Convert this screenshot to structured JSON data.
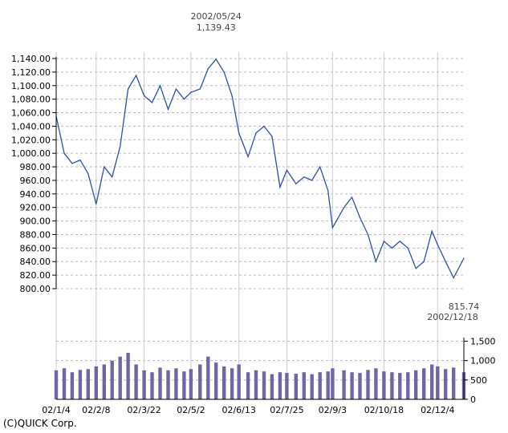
{
  "chart_data": [
    {
      "type": "line",
      "title": "",
      "xlabel": "",
      "ylabel": "",
      "ylim": [
        800,
        1140
      ],
      "y_ticks": [
        "1,140.00",
        "1,120.00",
        "1,100.00",
        "1,080.00",
        "1,060.00",
        "1,040.00",
        "1,020.00",
        "1,000.00",
        "980.00",
        "960.00",
        "940.00",
        "920.00",
        "900.00",
        "880.00",
        "860.00",
        "840.00",
        "820.00",
        "800.00"
      ],
      "grid": true,
      "line_color": "#2d4fb0",
      "high": {
        "date": "2002/05/24",
        "value_label": "1,139.43"
      },
      "low": {
        "date": "2002/12/18",
        "value_label": "815.74"
      },
      "series": [
        {
          "x": [
            "2002-01-04",
            "2002-01-11",
            "2002-01-18",
            "2002-01-25",
            "2002-02-01",
            "2002-02-08",
            "2002-02-15",
            "2002-02-22",
            "2002-03-01",
            "2002-03-08",
            "2002-03-15",
            "2002-03-22",
            "2002-03-29",
            "2002-04-05",
            "2002-04-12",
            "2002-04-19",
            "2002-04-26",
            "2002-05-02",
            "2002-05-10",
            "2002-05-17",
            "2002-05-24",
            "2002-05-31",
            "2002-06-07",
            "2002-06-13",
            "2002-06-21",
            "2002-06-28",
            "2002-07-05",
            "2002-07-12",
            "2002-07-19",
            "2002-07-25",
            "2002-08-02",
            "2002-08-09",
            "2002-08-16",
            "2002-08-23",
            "2002-08-30",
            "2002-09-03",
            "2002-09-13",
            "2002-09-20",
            "2002-09-27",
            "2002-10-04",
            "2002-10-11",
            "2002-10-18",
            "2002-10-25",
            "2002-11-01",
            "2002-11-08",
            "2002-11-15",
            "2002-11-22",
            "2002-11-29",
            "2002-12-04",
            "2002-12-11",
            "2002-12-18",
            "2002-12-27"
          ],
          "values": [
            1055,
            1000,
            985,
            990,
            970,
            925,
            980,
            965,
            1010,
            1095,
            1115,
            1085,
            1075,
            1100,
            1065,
            1095,
            1080,
            1090,
            1095,
            1125,
            1139,
            1120,
            1085,
            1030,
            995,
            1030,
            1040,
            1025,
            950,
            975,
            955,
            965,
            960,
            980,
            945,
            890,
            920,
            935,
            905,
            880,
            840,
            870,
            860,
            870,
            860,
            830,
            840,
            885,
            865,
            840,
            816,
            845
          ]
        }
      ]
    },
    {
      "type": "bar",
      "title": "",
      "xlabel": "",
      "ylabel": "",
      "ylim": [
        0,
        1800
      ],
      "y_ticks": [
        "1,500",
        "1,000",
        "500",
        "0"
      ],
      "x_ticks": [
        "02/1/4",
        "02/2/8",
        "02/3/22",
        "02/5/2",
        "02/6/13",
        "02/7/25",
        "02/9/3",
        "02/10/18",
        "02/12/4"
      ],
      "grid": true,
      "bar_color": "#6f67a3",
      "series": [
        {
          "x": [
            "2002-01-04",
            "2002-01-11",
            "2002-01-18",
            "2002-01-25",
            "2002-02-01",
            "2002-02-08",
            "2002-02-15",
            "2002-02-22",
            "2002-03-01",
            "2002-03-08",
            "2002-03-15",
            "2002-03-22",
            "2002-03-29",
            "2002-04-05",
            "2002-04-12",
            "2002-04-19",
            "2002-04-26",
            "2002-05-02",
            "2002-05-10",
            "2002-05-17",
            "2002-05-24",
            "2002-05-31",
            "2002-06-07",
            "2002-06-13",
            "2002-06-21",
            "2002-06-28",
            "2002-07-05",
            "2002-07-12",
            "2002-07-19",
            "2002-07-25",
            "2002-08-02",
            "2002-08-09",
            "2002-08-16",
            "2002-08-23",
            "2002-08-30",
            "2002-09-03",
            "2002-09-13",
            "2002-09-20",
            "2002-09-27",
            "2002-10-04",
            "2002-10-11",
            "2002-10-18",
            "2002-10-25",
            "2002-11-01",
            "2002-11-08",
            "2002-11-15",
            "2002-11-22",
            "2002-11-29",
            "2002-12-04",
            "2002-12-11",
            "2002-12-18",
            "2002-12-27"
          ],
          "values": [
            750,
            800,
            700,
            760,
            780,
            850,
            900,
            1000,
            1100,
            1200,
            900,
            750,
            700,
            820,
            750,
            800,
            720,
            780,
            900,
            1100,
            950,
            850,
            800,
            900,
            700,
            750,
            720,
            650,
            700,
            680,
            660,
            700,
            650,
            700,
            720,
            800,
            750,
            700,
            680,
            760,
            800,
            720,
            700,
            680,
            700,
            750,
            800,
            900,
            850,
            780,
            820,
            700
          ]
        }
      ]
    }
  ],
  "credit": "(C)QUICK Corp."
}
